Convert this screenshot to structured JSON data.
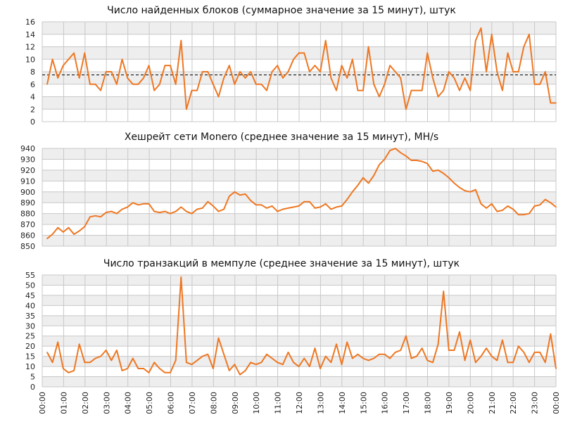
{
  "colors": {
    "series": "#ee7722",
    "grid": "#c8c8c8",
    "band": "#eeeeee",
    "avg": "#000000"
  },
  "chart_data": [
    {
      "type": "line",
      "title": "Число найденных блоков (суммарное значение за 15 минут), штук",
      "ylim": [
        0,
        16
      ],
      "yticks": [
        0,
        2,
        4,
        6,
        8,
        10,
        12,
        14,
        16
      ],
      "reference_line": 7.5,
      "grid": true,
      "values": [
        6,
        10,
        7,
        9,
        10,
        11,
        7,
        11,
        6,
        6,
        5,
        8,
        8,
        6,
        10,
        7,
        6,
        6,
        7,
        9,
        5,
        6,
        9,
        9,
        6,
        13,
        2,
        5,
        5,
        8,
        8,
        6,
        4,
        7,
        9,
        6,
        8,
        7,
        8,
        6,
        6,
        5,
        8,
        9,
        7,
        8,
        10,
        11,
        11,
        8,
        9,
        8,
        13,
        7,
        5,
        9,
        7,
        10,
        5,
        5,
        12,
        6,
        4,
        6,
        9,
        8,
        7,
        2,
        5,
        5,
        5,
        11,
        7,
        4,
        5,
        8,
        7,
        5,
        7,
        5,
        13,
        15,
        8,
        14,
        8,
        5,
        11,
        8,
        8,
        12,
        14,
        6,
        6,
        8,
        3,
        3
      ]
    },
    {
      "type": "line",
      "title": "Хешрейт сети Monero (среднее значение за 15 минут), MH/s",
      "ylim": [
        850,
        940
      ],
      "yticks": [
        850,
        860,
        870,
        880,
        890,
        900,
        910,
        920,
        930,
        940
      ],
      "grid": true,
      "values": [
        857,
        861,
        867,
        863,
        867,
        861,
        864,
        868,
        877,
        878,
        877,
        881,
        882,
        880,
        884,
        886,
        890,
        888,
        889,
        889,
        882,
        881,
        882,
        880,
        882,
        886,
        882,
        880,
        884,
        885,
        891,
        887,
        882,
        884,
        896,
        900,
        897,
        898,
        892,
        888,
        888,
        885,
        887,
        882,
        884,
        885,
        886,
        887,
        891,
        891,
        885,
        886,
        889,
        884,
        886,
        887,
        893,
        900,
        906,
        913,
        908,
        915,
        925,
        930,
        938,
        940,
        936,
        933,
        929,
        929,
        928,
        926,
        919,
        920,
        917,
        913,
        908,
        904,
        901,
        900,
        902,
        889,
        885,
        889,
        882,
        883,
        887,
        884,
        879,
        879,
        880,
        887,
        888,
        893,
        890,
        886
      ]
    },
    {
      "type": "line",
      "title": "Число транзакций в мемпуле (среднее значение за 15 минут), штук",
      "ylim": [
        0,
        55
      ],
      "yticks": [
        0,
        5,
        10,
        15,
        20,
        25,
        30,
        35,
        40,
        45,
        50,
        55
      ],
      "grid": true,
      "values": [
        17,
        12,
        22,
        9,
        7,
        8,
        21,
        12,
        12,
        14,
        15,
        18,
        13,
        18,
        8,
        9,
        14,
        9,
        9,
        7,
        12,
        9,
        7,
        7,
        13,
        54,
        12,
        11,
        13,
        15,
        16,
        9,
        24,
        16,
        8,
        11,
        6,
        8,
        12,
        11,
        12,
        16,
        14,
        12,
        11,
        17,
        12,
        10,
        14,
        10,
        19,
        9,
        15,
        12,
        21,
        11,
        22,
        14,
        16,
        14,
        13,
        14,
        16,
        16,
        14,
        17,
        18,
        25,
        14,
        15,
        19,
        13,
        12,
        21,
        47,
        18,
        18,
        27,
        13,
        23,
        12,
        15,
        19,
        15,
        13,
        23,
        12,
        12,
        20,
        17,
        12,
        17,
        17,
        12,
        26,
        9
      ]
    }
  ],
  "x_axis": {
    "labels": [
      "00:00",
      "01:00",
      "02:00",
      "03:00",
      "04:00",
      "05:00",
      "06:00",
      "07:00",
      "08:00",
      "09:00",
      "10:00",
      "11:00",
      "12:00",
      "13:00",
      "14:00",
      "15:00",
      "16:00",
      "17:00",
      "18:00",
      "19:00",
      "20:00",
      "21:00",
      "22:00",
      "23:00",
      "00:00"
    ]
  }
}
